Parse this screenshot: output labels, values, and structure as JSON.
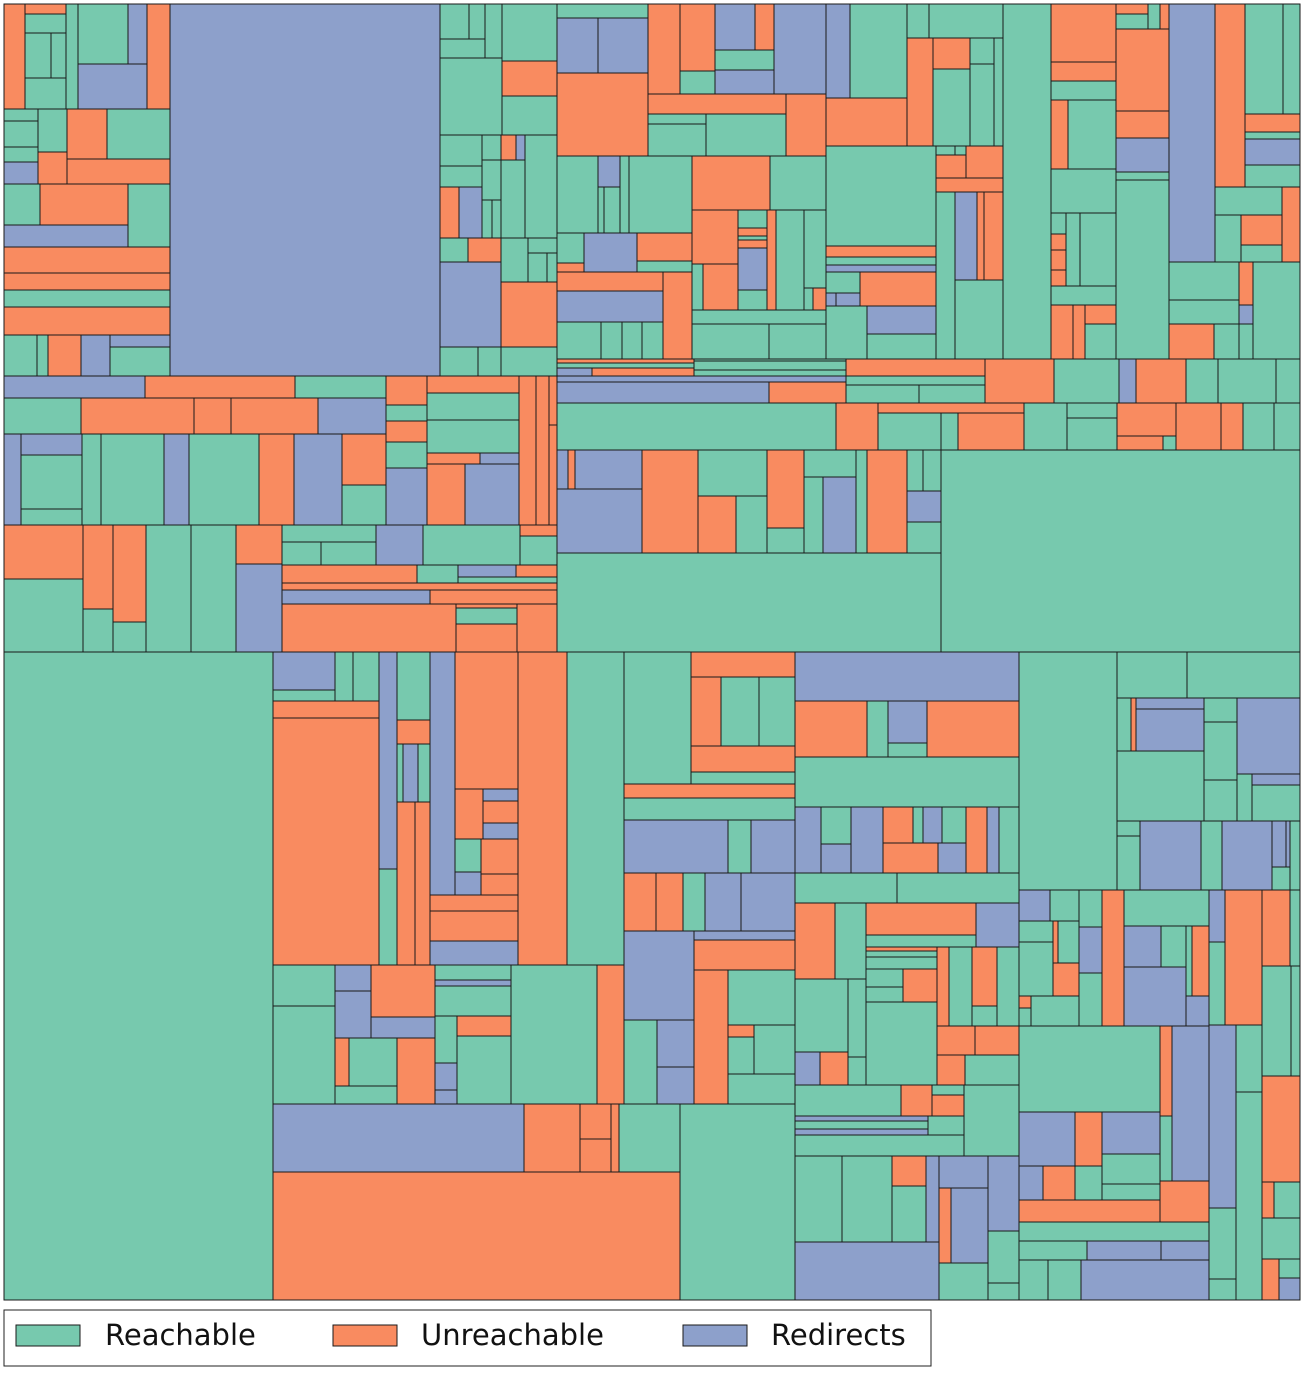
{
  "chart_data": {
    "type": "treemap",
    "series": [
      {
        "name": "Reachable",
        "color": "#77c9ae"
      },
      {
        "name": "Unreachable",
        "color": "#f98b60"
      },
      {
        "name": "Redirects",
        "color": "#8da0cb"
      }
    ],
    "legend": "lower left"
  }
}
